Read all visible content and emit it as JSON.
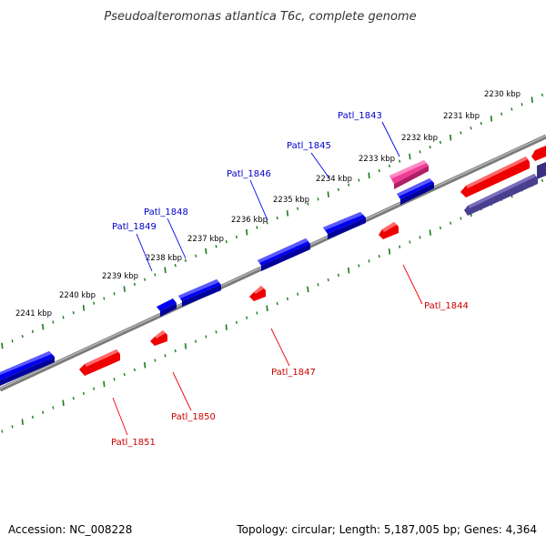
{
  "title": "Pseudoalteromonas atlantica T6c, complete genome",
  "footer": {
    "accession": "Accession: NC_008228",
    "summary": "Topology: circular; Length: 5,187,005 bp; Genes: 4,364"
  },
  "colors": {
    "backbone": "#888888",
    "tick": "#1a7a1a",
    "forward_gene": "#0000ee",
    "reverse_gene": "#ee0000",
    "forward_label": "#0000cc",
    "reverse_label": "#cc0000",
    "rna_gene": "#ee2a8a",
    "other_gene": "#4a3f8f"
  },
  "kbp_labels": [
    "2230 kbp",
    "2231 kbp",
    "2232 kbp",
    "2233 kbp",
    "2234 kbp",
    "2235 kbp",
    "2236 kbp",
    "2237 kbp",
    "2238 kbp",
    "2239 kbp",
    "2240 kbp",
    "2241 kbp"
  ],
  "forward_gene_labels": [
    "Patl_1843",
    "Patl_1845",
    "Patl_1846",
    "Patl_1848",
    "Patl_1849"
  ],
  "reverse_gene_labels": [
    "Patl_1844",
    "Patl_1847",
    "Patl_1850",
    "Patl_1851"
  ]
}
